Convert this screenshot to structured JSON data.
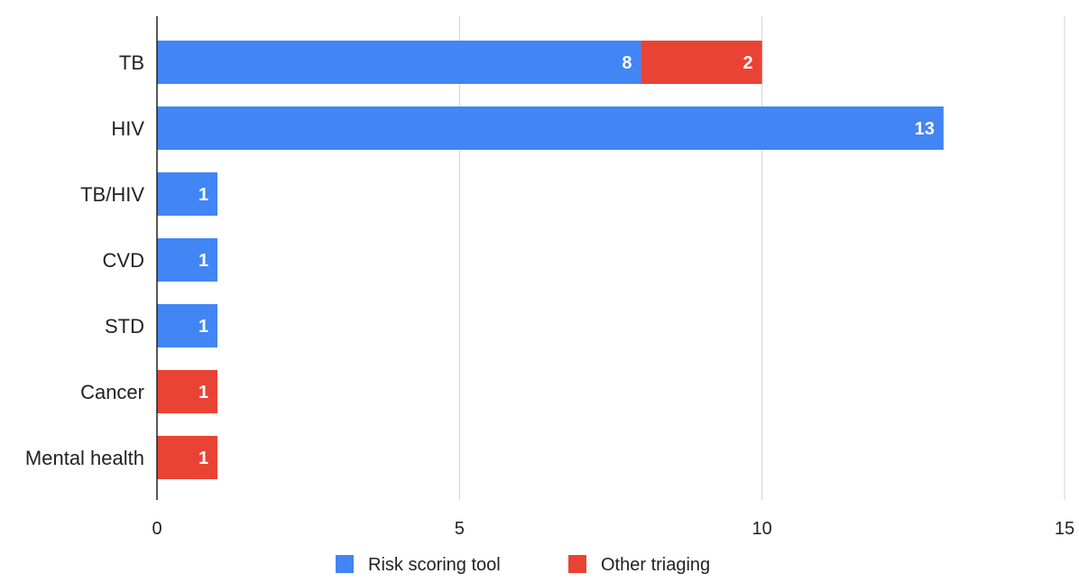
{
  "chart_data": {
    "type": "bar",
    "orientation": "horizontal",
    "stacked": true,
    "categories": [
      "TB",
      "HIV",
      "TB/HIV",
      "CVD",
      "STD",
      "Cancer",
      "Mental health"
    ],
    "series": [
      {
        "name": "Risk scoring tool",
        "color": "#4285f4",
        "values": [
          8,
          13,
          1,
          1,
          1,
          0,
          0
        ]
      },
      {
        "name": "Other triaging",
        "color": "#e94335",
        "values": [
          2,
          0,
          0,
          0,
          0,
          1,
          1
        ]
      }
    ],
    "data_labels": [
      [
        "8",
        "13",
        "1",
        "1",
        "1",
        "0",
        "0"
      ],
      [
        "2",
        "",
        "",
        "",
        "",
        "1",
        "1"
      ]
    ],
    "x_ticks": [
      "0",
      "5",
      "10",
      "15"
    ],
    "xlim": [
      0,
      15
    ],
    "grid": "vertical",
    "legend_position": "bottom"
  }
}
